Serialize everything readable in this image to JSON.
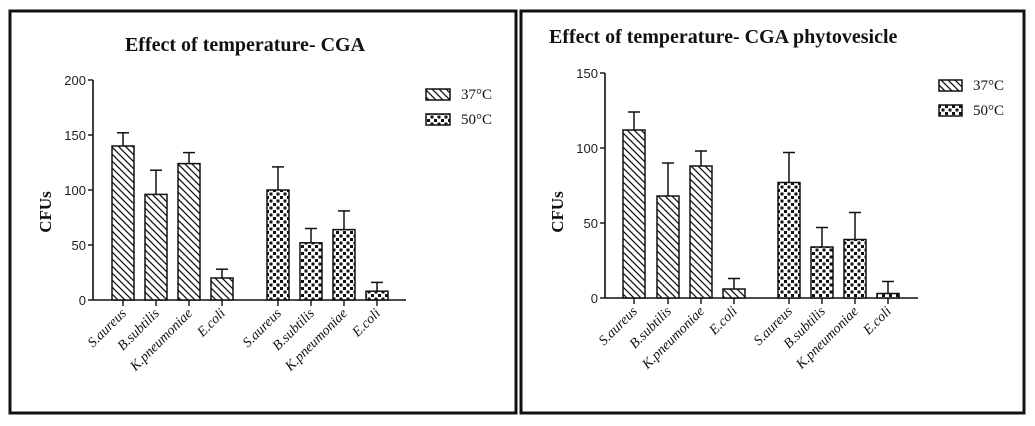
{
  "chart_data": [
    {
      "type": "bar",
      "title": "Effect of temperature- CGA",
      "xlabel": "",
      "ylabel": "CFUs",
      "ylim": [
        0,
        200
      ],
      "yticks": [
        0,
        50,
        100,
        150,
        200
      ],
      "grid": false,
      "legend_position": "top-right",
      "categories": [
        "S.aureus",
        "B.subtilis",
        "K.pneumoniae",
        "E.coli"
      ],
      "series": [
        {
          "name": "37°C",
          "pattern": "diagonal-hatch",
          "values": [
            140,
            96,
            124,
            20
          ],
          "error_upper": [
            152,
            118,
            134,
            28
          ]
        },
        {
          "name": "50°C",
          "pattern": "checker",
          "values": [
            100,
            52,
            64,
            8
          ],
          "error_upper": [
            121,
            65,
            81,
            16
          ]
        }
      ]
    },
    {
      "type": "bar",
      "title": "Effect of temperature- CGA phytovesicle",
      "xlabel": "",
      "ylabel": "CFUs",
      "ylim": [
        0,
        150
      ],
      "yticks": [
        0,
        50,
        100,
        150
      ],
      "grid": false,
      "legend_position": "top-right",
      "categories": [
        "S.aureus",
        "B.subtilis",
        "K.pneumoniae",
        "E.coli"
      ],
      "series": [
        {
          "name": "37°C",
          "pattern": "diagonal-hatch",
          "values": [
            112,
            68,
            88,
            6
          ],
          "error_upper": [
            124,
            90,
            98,
            13
          ]
        },
        {
          "name": "50°C",
          "pattern": "checker",
          "values": [
            77,
            34,
            39,
            3
          ],
          "error_upper": [
            97,
            47,
            57,
            11
          ]
        }
      ]
    }
  ]
}
